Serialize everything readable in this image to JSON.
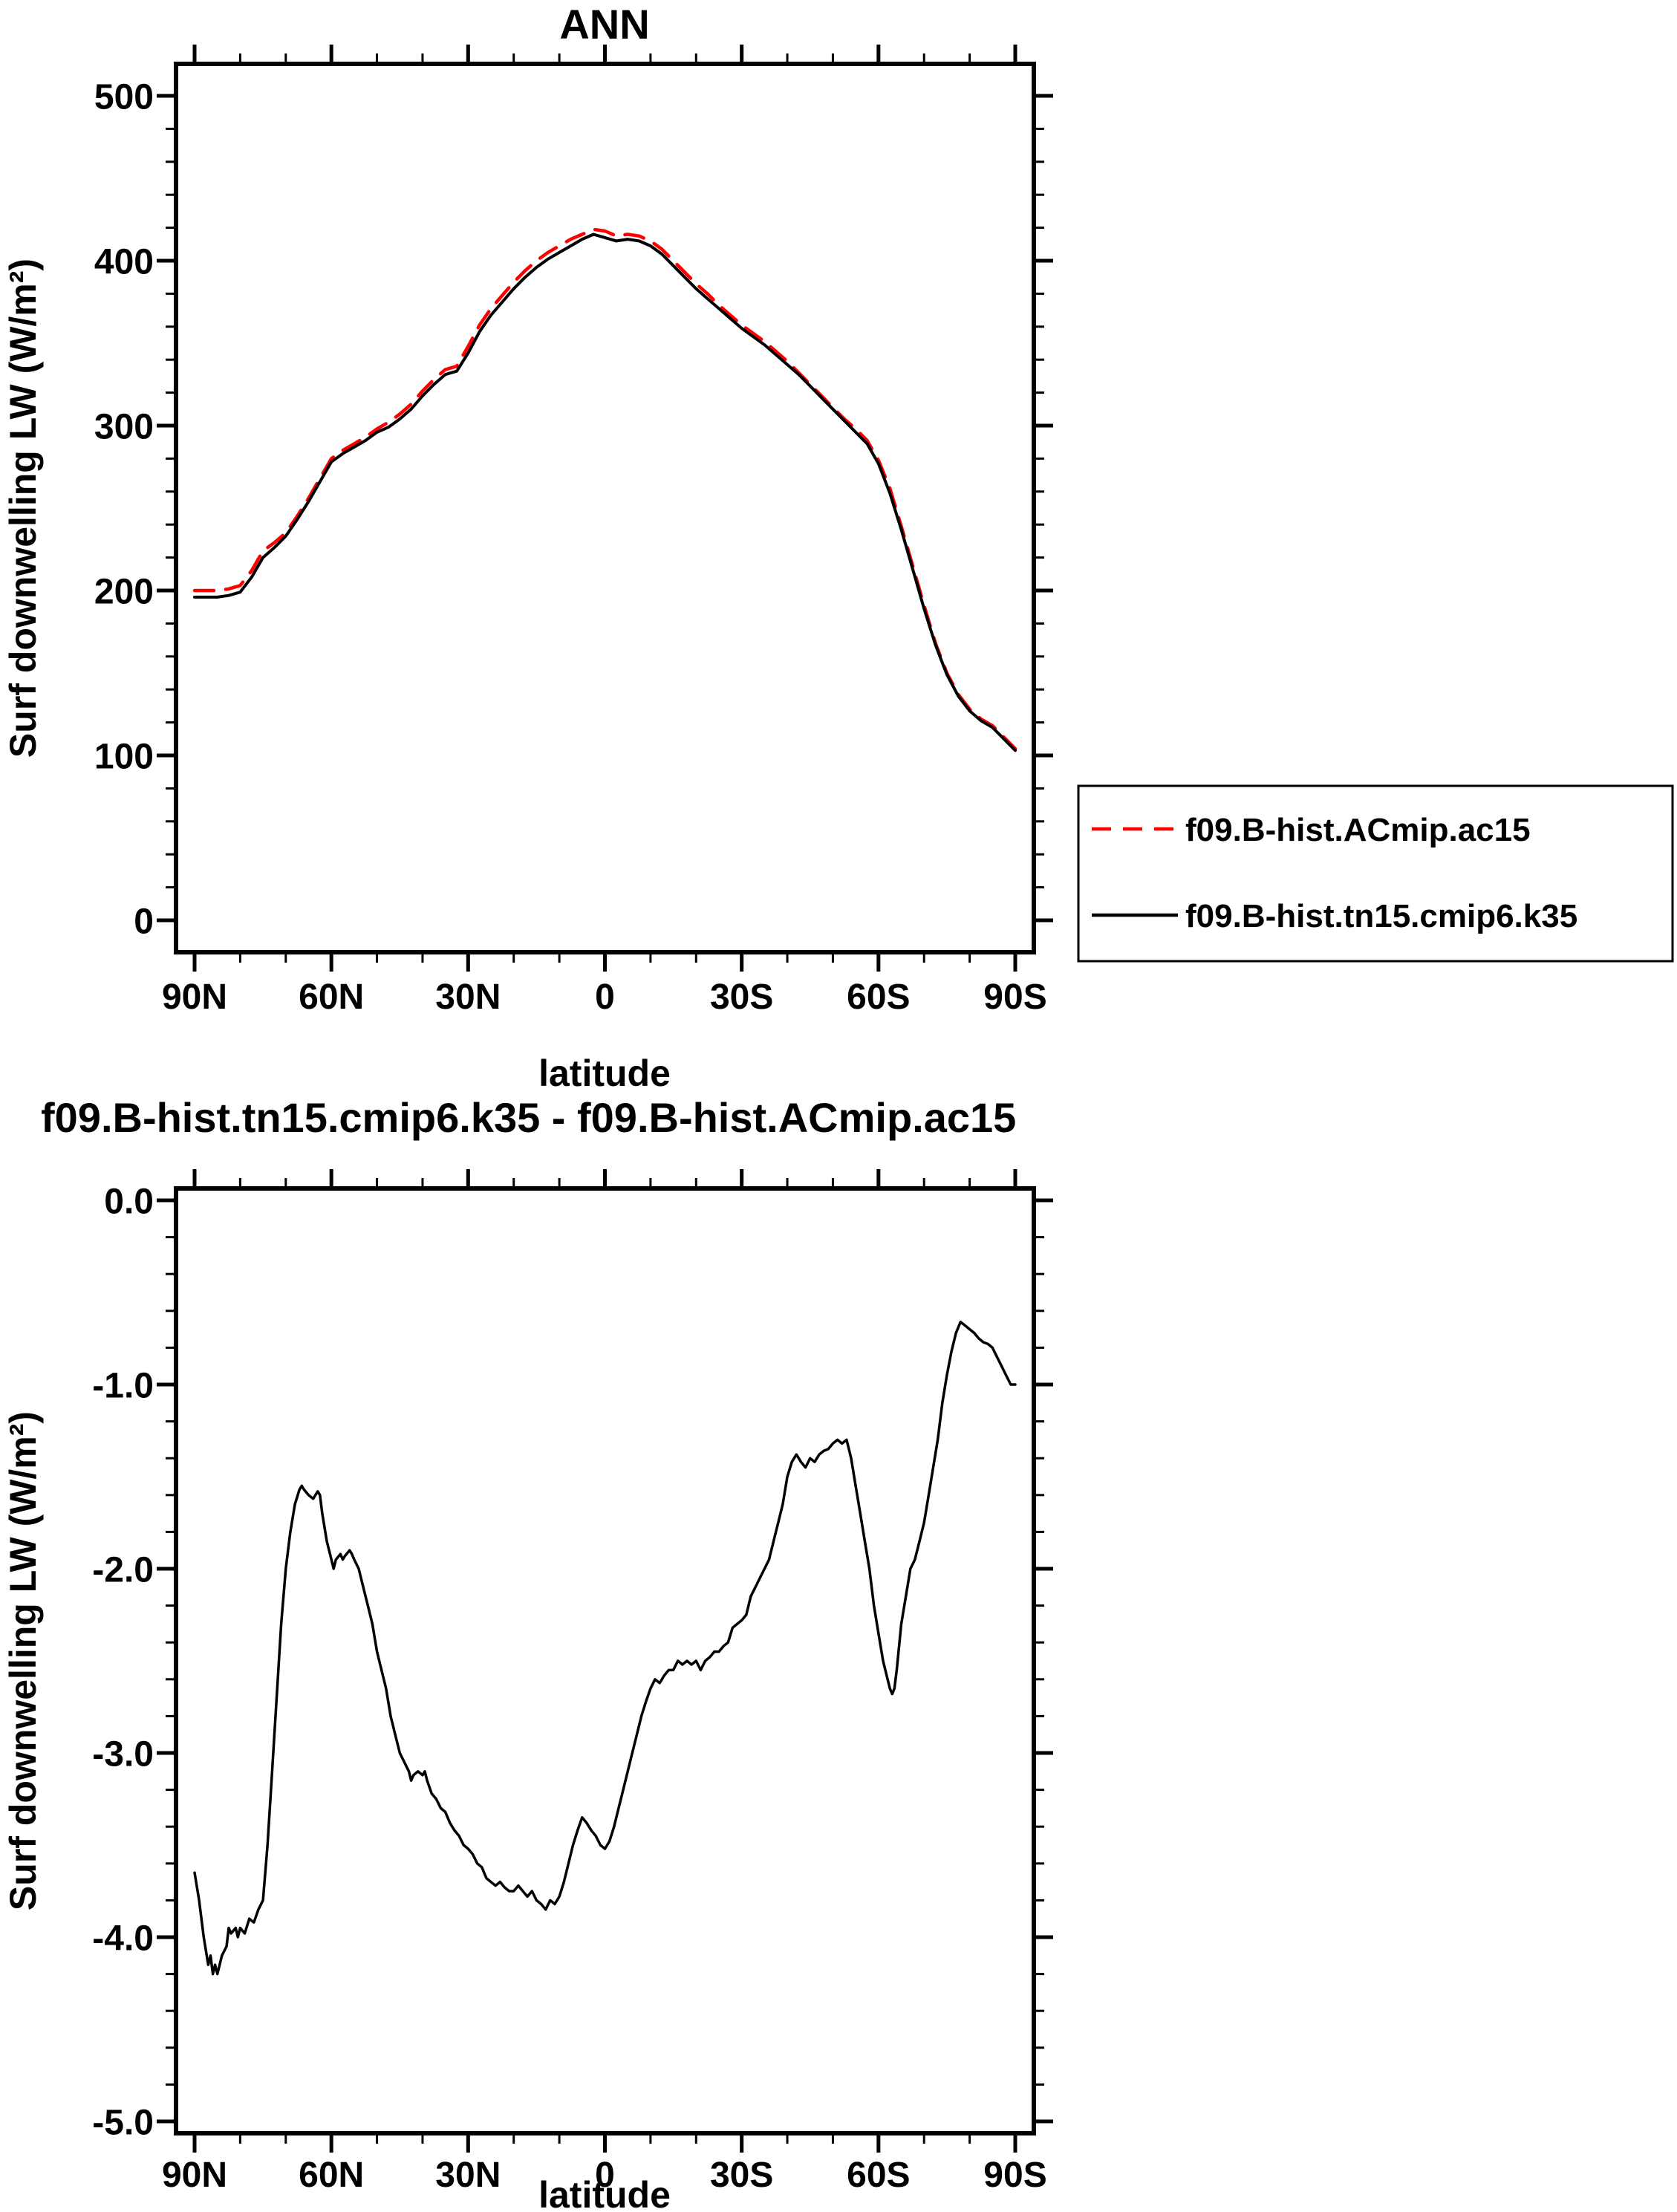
{
  "page": {
    "background": "#ffffff"
  },
  "chart_data": [
    {
      "type": "line",
      "title": "ANN",
      "xlabel": "latitude",
      "ylabel": "Surf downwelling LW (W/m²)",
      "xlim": [
        90,
        -90
      ],
      "ylim": [
        0,
        500
      ],
      "grid": false,
      "legend_position": "outside-right-below-plot",
      "xticks": {
        "values": [
          90,
          60,
          30,
          0,
          -30,
          -60,
          -90
        ],
        "labels": [
          "90N",
          "60N",
          "30N",
          "0",
          "30S",
          "60S",
          "90S"
        ],
        "minor_step": 10
      },
      "yticks": {
        "values": [
          0,
          100,
          200,
          300,
          400,
          500
        ],
        "labels": [
          "0",
          "100",
          "200",
          "300",
          "400",
          "500"
        ],
        "minor_step": 20
      },
      "series": [
        {
          "name": "f09.B-hist.ACmip.ac15",
          "color": "#ff0000",
          "style": "dashed",
          "lat": [
            90,
            87.5,
            85,
            82.5,
            80,
            77.5,
            75,
            72.5,
            70,
            67.5,
            65,
            62.5,
            60,
            57.5,
            55,
            52.5,
            50,
            47.5,
            45,
            42.5,
            40,
            37.5,
            35,
            32.5,
            30,
            27.5,
            25,
            22.5,
            20,
            17.5,
            15,
            12.5,
            10,
            7.5,
            5,
            2.5,
            0,
            -2.5,
            -5,
            -7.5,
            -10,
            -12.5,
            -15,
            -17.5,
            -20,
            -22.5,
            -25,
            -27.5,
            -30,
            -32.5,
            -35,
            -37.5,
            -40,
            -42.5,
            -45,
            -47.5,
            -50,
            -52.5,
            -55,
            -57.5,
            -60,
            -62.5,
            -65,
            -67.5,
            -70,
            -72.5,
            -75,
            -77.5,
            -80,
            -82.5,
            -85,
            -87.5,
            -90
          ],
          "values": [
            200,
            200,
            200,
            201,
            203,
            212,
            224,
            229,
            235,
            245,
            256,
            268,
            280,
            285,
            289,
            293,
            298,
            302,
            307,
            313,
            321,
            328,
            334,
            336,
            348,
            361,
            371,
            379,
            387,
            394,
            400,
            405,
            409,
            413,
            416,
            419,
            418,
            415,
            416,
            415,
            412,
            407,
            400,
            393,
            386,
            380,
            373,
            367,
            361,
            356,
            351,
            345,
            339,
            332,
            325,
            318,
            311,
            304,
            298,
            291,
            279,
            262,
            239,
            215,
            191,
            168,
            150,
            137,
            128,
            122,
            118,
            111,
            104
          ]
        },
        {
          "name": "f09.B-hist.tn15.cmip6.k35",
          "color": "#000000",
          "style": "solid",
          "lat": [
            90,
            87.5,
            85,
            82.5,
            80,
            77.5,
            75,
            72.5,
            70,
            67.5,
            65,
            62.5,
            60,
            57.5,
            55,
            52.5,
            50,
            47.5,
            45,
            42.5,
            40,
            37.5,
            35,
            32.5,
            30,
            27.5,
            25,
            22.5,
            20,
            17.5,
            15,
            12.5,
            10,
            7.5,
            5,
            2.5,
            0,
            -2.5,
            -5,
            -7.5,
            -10,
            -12.5,
            -15,
            -17.5,
            -20,
            -22.5,
            -25,
            -27.5,
            -30,
            -32.5,
            -35,
            -37.5,
            -40,
            -42.5,
            -45,
            -47.5,
            -50,
            -52.5,
            -55,
            -57.5,
            -60,
            -62.5,
            -65,
            -67.5,
            -70,
            -72.5,
            -75,
            -77.5,
            -80,
            -82.5,
            -85,
            -87.5,
            -90
          ],
          "values": [
            196,
            196,
            196,
            197,
            199,
            208,
            220,
            226,
            233,
            243,
            254,
            266,
            278,
            283,
            287,
            291,
            296,
            299,
            304,
            310,
            318,
            325,
            331,
            333,
            344,
            357,
            367,
            375,
            383,
            390,
            396,
            401,
            405,
            409,
            413,
            416,
            414,
            412,
            413,
            412,
            409,
            404,
            397,
            390,
            383,
            377,
            371,
            365,
            359,
            354,
            349,
            343,
            337,
            331,
            324,
            317,
            310,
            303,
            296,
            289,
            277,
            259,
            237,
            213,
            189,
            167,
            149,
            136,
            127,
            121,
            117,
            110,
            103
          ]
        }
      ]
    },
    {
      "type": "line",
      "title": "f09.B-hist.tn15.cmip6.k35 - f09.B-hist.ACmip.ac15",
      "xlabel": "latitude",
      "ylabel": "Surf downwelling LW (W/m²)",
      "xlim": [
        90,
        -90
      ],
      "ylim": [
        -5,
        0
      ],
      "grid": false,
      "legend_position": "none",
      "xticks": {
        "values": [
          90,
          60,
          30,
          0,
          -30,
          -60,
          -90
        ],
        "labels": [
          "90N",
          "60N",
          "30N",
          "0",
          "30S",
          "60S",
          "90S"
        ],
        "minor_step": 10
      },
      "yticks": {
        "values": [
          0,
          -1,
          -2,
          -3,
          -4,
          -5
        ],
        "labels": [
          "0.0",
          "-1.0",
          "-2.0",
          "-3.0",
          "-4.0",
          "-5.0"
        ],
        "minor_step": 0.2
      },
      "series": [
        {
          "color": "#000000",
          "style": "solid",
          "lat": [
            90,
            89,
            88,
            87,
            86.5,
            86,
            85.5,
            85,
            84,
            83,
            82.5,
            82,
            81,
            80.5,
            80,
            79,
            78,
            77,
            76,
            75,
            74,
            73,
            72,
            71,
            70,
            69,
            68,
            67,
            66.5,
            66,
            65,
            64,
            63,
            62.5,
            62,
            61,
            60,
            59.5,
            59,
            58,
            57.5,
            57,
            56,
            55.5,
            55,
            54,
            53,
            52,
            51,
            50,
            49,
            48,
            47,
            46,
            45,
            44,
            43,
            42.5,
            42,
            41,
            40,
            39.5,
            39,
            38,
            37,
            36,
            35,
            34,
            33,
            32,
            31,
            30,
            29,
            28,
            27,
            26,
            25,
            24,
            23,
            22,
            21,
            20,
            19,
            18,
            17,
            16,
            15,
            14,
            13,
            12,
            11,
            10,
            9,
            8,
            7,
            6,
            5,
            4,
            3,
            2,
            1,
            0,
            -1,
            -2,
            -3,
            -4,
            -5,
            -6,
            -7,
            -8,
            -9,
            -10,
            -11,
            -12,
            -13,
            -14,
            -15,
            -16,
            -17,
            -18,
            -19,
            -20,
            -21,
            -22,
            -23,
            -24,
            -25,
            -26,
            -27,
            -28,
            -29,
            -30,
            -31,
            -32,
            -33,
            -34,
            -35,
            -36,
            -37,
            -38,
            -39,
            -40,
            -41,
            -42,
            -43,
            -44,
            -45,
            -46,
            -47,
            -48,
            -49,
            -50,
            -51,
            -52,
            -53,
            -54,
            -55,
            -56,
            -57,
            -58,
            -59,
            -60,
            -61,
            -62,
            -62.5,
            -63,
            -63.5,
            -64,
            -65,
            -66,
            -67,
            -68,
            -69,
            -70,
            -71,
            -72,
            -73,
            -74,
            -75,
            -76,
            -77,
            -78,
            -79,
            -80,
            -81,
            -82,
            -83,
            -84,
            -85,
            -86,
            -87,
            -88,
            -89,
            -90
          ],
          "values": [
            -3.65,
            -3.8,
            -4.0,
            -4.15,
            -4.1,
            -4.2,
            -4.15,
            -4.2,
            -4.1,
            -4.05,
            -3.95,
            -3.98,
            -3.95,
            -4.0,
            -3.95,
            -3.98,
            -3.9,
            -3.92,
            -3.85,
            -3.8,
            -3.5,
            -3.1,
            -2.7,
            -2.3,
            -2.0,
            -1.8,
            -1.65,
            -1.57,
            -1.55,
            -1.57,
            -1.6,
            -1.62,
            -1.58,
            -1.6,
            -1.7,
            -1.85,
            -1.95,
            -2.0,
            -1.95,
            -1.92,
            -1.95,
            -1.93,
            -1.9,
            -1.92,
            -1.95,
            -2.0,
            -2.1,
            -2.2,
            -2.3,
            -2.45,
            -2.55,
            -2.65,
            -2.8,
            -2.9,
            -3.0,
            -3.05,
            -3.1,
            -3.15,
            -3.12,
            -3.1,
            -3.12,
            -3.1,
            -3.15,
            -3.22,
            -3.25,
            -3.3,
            -3.32,
            -3.38,
            -3.42,
            -3.45,
            -3.5,
            -3.52,
            -3.55,
            -3.6,
            -3.62,
            -3.68,
            -3.7,
            -3.72,
            -3.7,
            -3.73,
            -3.75,
            -3.75,
            -3.72,
            -3.75,
            -3.78,
            -3.75,
            -3.8,
            -3.82,
            -3.85,
            -3.8,
            -3.82,
            -3.78,
            -3.7,
            -3.6,
            -3.5,
            -3.42,
            -3.35,
            -3.38,
            -3.42,
            -3.45,
            -3.5,
            -3.52,
            -3.48,
            -3.4,
            -3.3,
            -3.2,
            -3.1,
            -3.0,
            -2.9,
            -2.8,
            -2.72,
            -2.65,
            -2.6,
            -2.62,
            -2.58,
            -2.55,
            -2.55,
            -2.5,
            -2.52,
            -2.5,
            -2.52,
            -2.5,
            -2.55,
            -2.5,
            -2.48,
            -2.45,
            -2.45,
            -2.42,
            -2.4,
            -2.32,
            -2.3,
            -2.28,
            -2.25,
            -2.15,
            -2.1,
            -2.05,
            -2.0,
            -1.95,
            -1.85,
            -1.75,
            -1.65,
            -1.5,
            -1.42,
            -1.38,
            -1.42,
            -1.45,
            -1.4,
            -1.42,
            -1.38,
            -1.36,
            -1.35,
            -1.32,
            -1.3,
            -1.32,
            -1.3,
            -1.4,
            -1.55,
            -1.7,
            -1.85,
            -2.0,
            -2.2,
            -2.35,
            -2.5,
            -2.6,
            -2.65,
            -2.68,
            -2.65,
            -2.55,
            -2.3,
            -2.15,
            -2.0,
            -1.95,
            -1.85,
            -1.75,
            -1.6,
            -1.45,
            -1.3,
            -1.1,
            -0.95,
            -0.82,
            -0.72,
            -0.66,
            -0.68,
            -0.7,
            -0.72,
            -0.75,
            -0.77,
            -0.78,
            -0.8,
            -0.85,
            -0.9,
            -0.95,
            -1.0,
            -1.0
          ]
        }
      ]
    }
  ]
}
